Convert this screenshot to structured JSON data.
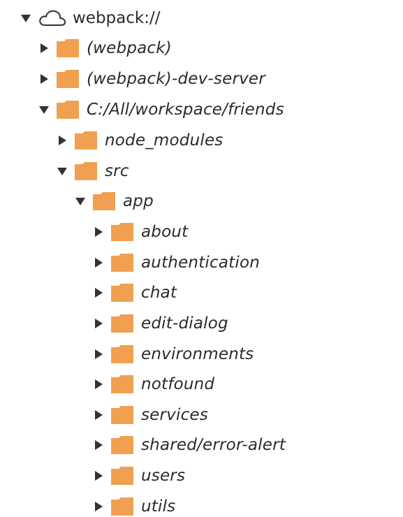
{
  "tree": {
    "root": {
      "label": "webpack://",
      "icon": "cloud-icon",
      "expanded": true
    },
    "children": [
      {
        "label": "(webpack)",
        "expanded": false
      },
      {
        "label": "(webpack)-dev-server",
        "expanded": false
      },
      {
        "label": "C:/All/workspace/friends",
        "expanded": true
      },
      {
        "label": "node_modules",
        "expanded": false
      },
      {
        "label": "src",
        "expanded": true
      },
      {
        "label": "app",
        "expanded": true
      },
      {
        "label": "about",
        "expanded": false
      },
      {
        "label": "authentication",
        "expanded": false
      },
      {
        "label": "chat",
        "expanded": false
      },
      {
        "label": "edit-dialog",
        "expanded": false
      },
      {
        "label": "environments",
        "expanded": false
      },
      {
        "label": "notfound",
        "expanded": false
      },
      {
        "label": "services",
        "expanded": false
      },
      {
        "label": "shared/error-alert",
        "expanded": false
      },
      {
        "label": "users",
        "expanded": false
      },
      {
        "label": "utils",
        "expanded": false
      }
    ]
  },
  "colors": {
    "folder": "#F0A050",
    "arrow": "#333333",
    "text": "#2b2b2b"
  }
}
